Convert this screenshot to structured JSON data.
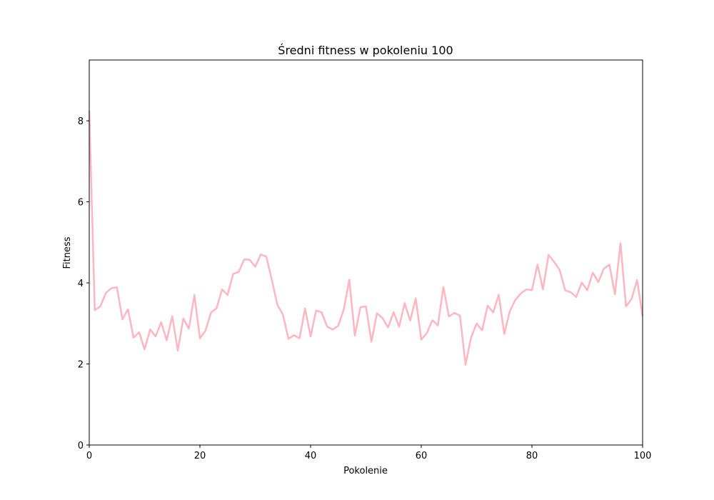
{
  "chart_data": {
    "type": "line",
    "title": "Średni fitness w pokoleniu 100",
    "xlabel": "Pokolenie",
    "ylabel": "Fitness",
    "xlim": [
      0,
      100
    ],
    "ylim": [
      0,
      9.5
    ],
    "xticks": [
      0,
      20,
      40,
      60,
      80,
      100
    ],
    "yticks": [
      0,
      2,
      4,
      6,
      8
    ],
    "grid": false,
    "line_color": "#ffb6c1",
    "series": [
      {
        "x": [
          0,
          1,
          2,
          3,
          4,
          5,
          6,
          7,
          8,
          9,
          10,
          11,
          12,
          13,
          14,
          15,
          16,
          17,
          18,
          19,
          20,
          21,
          22,
          23,
          24,
          25,
          26,
          27,
          28,
          29,
          30,
          31,
          32,
          33,
          34,
          35,
          36,
          37,
          38,
          39,
          40,
          41,
          42,
          43,
          44,
          45,
          46,
          47,
          48,
          49,
          50,
          51,
          52,
          53,
          54,
          55,
          56,
          57,
          58,
          59,
          60,
          61,
          62,
          63,
          64,
          65,
          66,
          67,
          68,
          69,
          70,
          71,
          72,
          73,
          74,
          75,
          76,
          77,
          78,
          79,
          80,
          81,
          82,
          83,
          84,
          85,
          86,
          87,
          88,
          89,
          90,
          91,
          92,
          93,
          94,
          95,
          96,
          97,
          98,
          99,
          100
        ],
        "values": [
          8.25,
          3.33,
          3.42,
          3.75,
          3.87,
          3.89,
          3.1,
          3.35,
          2.65,
          2.78,
          2.36,
          2.85,
          2.68,
          3.03,
          2.58,
          3.18,
          2.33,
          3.12,
          2.87,
          3.7,
          2.63,
          2.82,
          3.27,
          3.37,
          3.84,
          3.7,
          4.22,
          4.27,
          4.58,
          4.57,
          4.4,
          4.7,
          4.65,
          4.07,
          3.46,
          3.22,
          2.62,
          2.71,
          2.63,
          3.37,
          2.68,
          3.32,
          3.27,
          2.92,
          2.85,
          2.94,
          3.35,
          4.08,
          2.7,
          3.4,
          3.42,
          2.55,
          3.25,
          3.13,
          2.9,
          3.28,
          2.92,
          3.5,
          3.07,
          3.62,
          2.6,
          2.76,
          3.08,
          2.95,
          3.9,
          3.17,
          3.26,
          3.19,
          1.98,
          2.65,
          3.0,
          2.83,
          3.44,
          3.27,
          3.71,
          2.74,
          3.3,
          3.58,
          3.74,
          3.84,
          3.82,
          4.45,
          3.84,
          4.69,
          4.52,
          4.32,
          3.82,
          3.77,
          3.65,
          4.01,
          3.82,
          4.25,
          4.02,
          4.35,
          4.45,
          3.72,
          4.98,
          3.42,
          3.6,
          4.07,
          3.18
        ]
      }
    ]
  }
}
